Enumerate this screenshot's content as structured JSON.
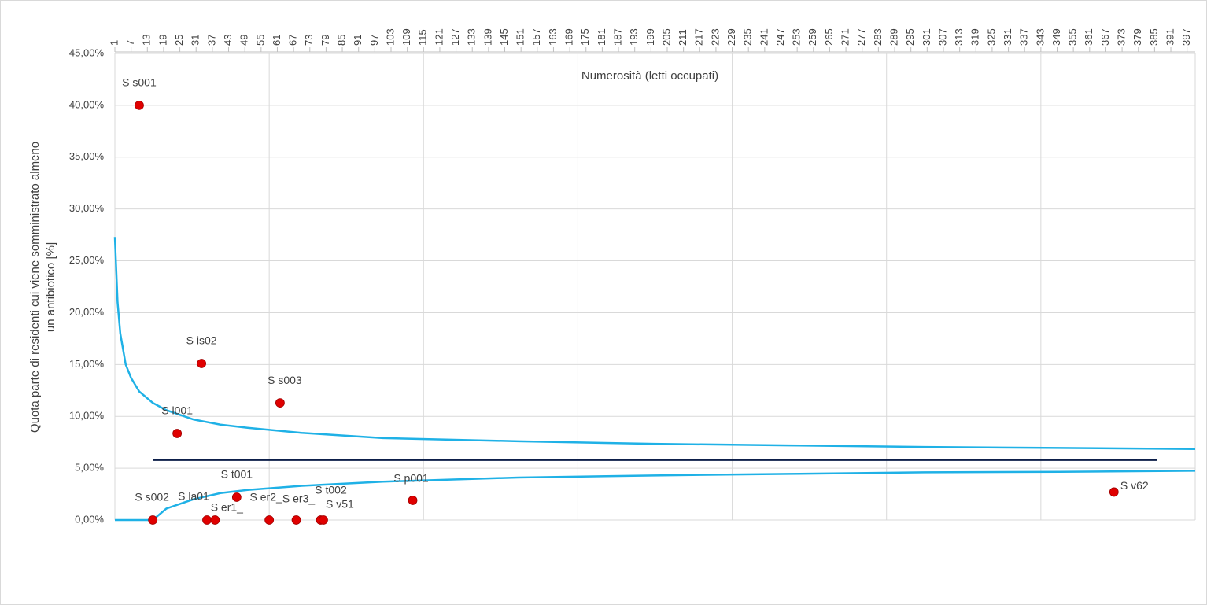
{
  "chart_data": {
    "type": "funnel",
    "xlabel": "Numerosità (letti occupati)",
    "ylabel": [
      "Quota parte di residenti cui viene somministrato almeno",
      "un antibiotico [%]"
    ],
    "xlim": [
      1,
      400
    ],
    "xticks": [
      1,
      7,
      13,
      19,
      25,
      31,
      37,
      43,
      49,
      55,
      61,
      67,
      73,
      79,
      85,
      91,
      97,
      103,
      109,
      115,
      121,
      127,
      133,
      139,
      145,
      151,
      157,
      163,
      169,
      175,
      181,
      187,
      193,
      199,
      205,
      211,
      217,
      223,
      229,
      235,
      241,
      247,
      253,
      259,
      265,
      271,
      277,
      283,
      289,
      295,
      301,
      307,
      313,
      319,
      325,
      331,
      337,
      343,
      349,
      355,
      361,
      367,
      373,
      379,
      385,
      391,
      397
    ],
    "x_gridlines": [
      1,
      58,
      115,
      172,
      229,
      286,
      343,
      400
    ],
    "ylim": [
      0,
      45
    ],
    "yticks": [
      {
        "value": 0,
        "label": "0,00%"
      },
      {
        "value": 5,
        "label": "5,00%"
      },
      {
        "value": 10,
        "label": "10,00%"
      },
      {
        "value": 15,
        "label": "15,00%"
      },
      {
        "value": 20,
        "label": "20,00%"
      },
      {
        "value": 25,
        "label": "25,00%"
      },
      {
        "value": 30,
        "label": "30,00%"
      },
      {
        "value": 35,
        "label": "35,00%"
      },
      {
        "value": 40,
        "label": "40,00%"
      },
      {
        "value": 45,
        "label": "45,00%"
      }
    ],
    "grid": true,
    "lines": [
      {
        "color": "#1fb1e6",
        "x": [
          1,
          2,
          3,
          5,
          7,
          10,
          15,
          20,
          30,
          40,
          50,
          70,
          100,
          150,
          200,
          250,
          300,
          350,
          400
        ],
        "values": [
          27.3,
          21,
          18,
          15,
          13.7,
          12.4,
          11.3,
          10.6,
          9.7,
          9.2,
          8.9,
          8.4,
          7.9,
          7.6,
          7.35,
          7.2,
          7.05,
          6.95,
          6.85
        ]
      },
      {
        "color": "#1fb1e6",
        "x": [
          1,
          2,
          3,
          5,
          7,
          10,
          15,
          20,
          30,
          40,
          50,
          70,
          100,
          150,
          200,
          250,
          300,
          350,
          400
        ],
        "values": [
          0,
          0,
          0,
          0,
          0,
          0,
          0,
          1.1,
          2.0,
          2.6,
          2.9,
          3.3,
          3.7,
          4.1,
          4.3,
          4.45,
          4.6,
          4.65,
          4.75
        ]
      },
      {
        "color": "#0d1f4a",
        "x": [
          15,
          386
        ],
        "values": [
          5.8,
          5.8
        ]
      }
    ],
    "points": {
      "color": "#e00000",
      "labels": [
        "S s001",
        "S s002",
        "S l001",
        "S is02",
        "S la01",
        "S er1_",
        "S t001",
        "S er2_",
        "S s003",
        "S er3_",
        "S t002",
        "S v51",
        "S p001",
        "S v62"
      ],
      "x": [
        10,
        15,
        24,
        33,
        35,
        38,
        46,
        58,
        62,
        68,
        77,
        78,
        111,
        370
      ],
      "values": [
        40.0,
        0,
        8.35,
        15.1,
        0,
        0,
        2.2,
        0,
        11.3,
        0,
        0,
        0,
        1.9,
        2.7
      ]
    }
  }
}
